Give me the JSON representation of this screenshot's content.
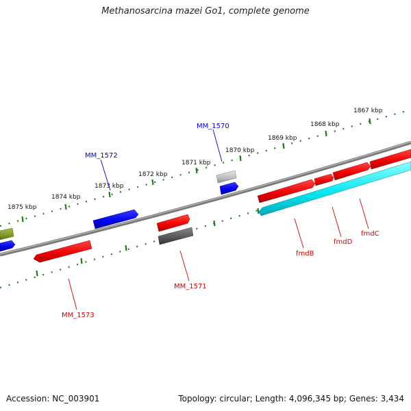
{
  "title": "Methanosarcina mazei Go1, complete genome",
  "footer": {
    "accession": "Accession: NC_003901",
    "summary": "Topology: circular; Length: 4,096,345 bp; Genes: 3,434"
  },
  "colors": {
    "backbone": "#7a7a7a",
    "tick": "#1f7a1f",
    "label_red": "#cc0000",
    "label_blue": "#0000cc"
  },
  "scale_labels": [
    "1867 kbp",
    "1868 kbp",
    "1869 kbp",
    "1870 kbp",
    "1871 kbp",
    "1872 kbp",
    "1873 kbp",
    "1874 kbp",
    "1875 kbp"
  ],
  "gene_labels": [
    {
      "id": "mm1570",
      "text": "MM_1570",
      "color": "blue"
    },
    {
      "id": "mm1572",
      "text": "MM_1572",
      "color": "blue"
    },
    {
      "id": "mm1571",
      "text": "MM_1571",
      "color": "red"
    },
    {
      "id": "mm1573",
      "text": "MM_1573",
      "color": "red"
    },
    {
      "id": "fmdb",
      "text": "fmdB",
      "color": "red"
    },
    {
      "id": "fmdd",
      "text": "fmdD",
      "color": "red"
    },
    {
      "id": "fmdc",
      "text": "fmdC",
      "color": "red"
    }
  ]
}
